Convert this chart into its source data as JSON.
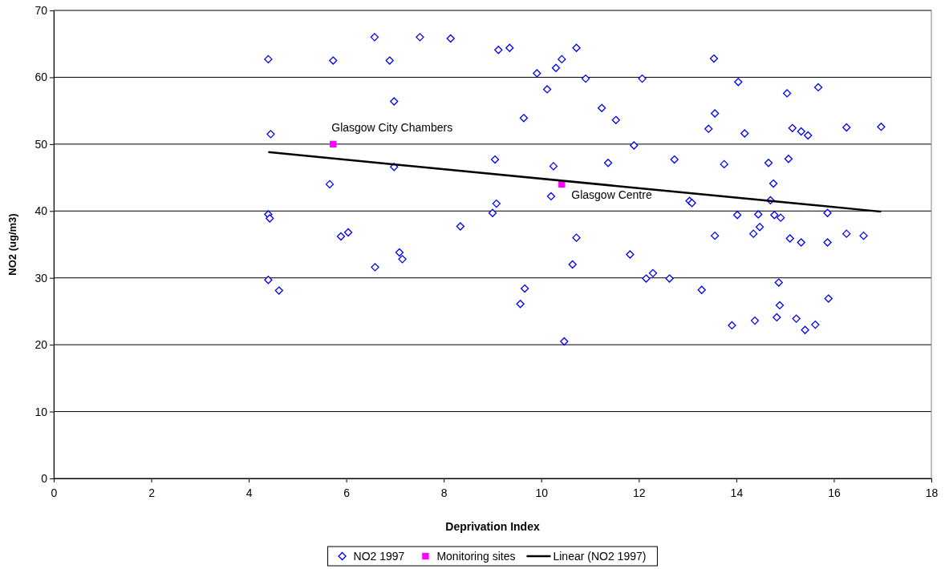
{
  "chart_data": {
    "type": "scatter",
    "xlabel": "Deprivation Index",
    "ylabel": "NO2 (ug/m3)",
    "xlim": [
      0,
      18
    ],
    "xticks": [
      0,
      2,
      4,
      6,
      8,
      10,
      12,
      14,
      16,
      18
    ],
    "ylim": [
      0,
      70
    ],
    "yticks": [
      0,
      10,
      20,
      30,
      40,
      50,
      60,
      70
    ],
    "grid": "y",
    "legend": "bottom",
    "annotations": [
      {
        "text": "Glasgow City Chambers",
        "x": 5.73,
        "y": 50.0
      },
      {
        "text": "Glasgow Centre",
        "x": 10.42,
        "y": 44.0
      }
    ],
    "series": [
      {
        "name": "NO2 1997",
        "marker": "diamond",
        "color": "#0000ff",
        "x": [
          4.4,
          4.45,
          4.4,
          4.43,
          4.4,
          4.62,
          5.73,
          5.66,
          5.89,
          6.04,
          6.58,
          6.59,
          6.89,
          6.98,
          6.98,
          7.09,
          7.15,
          7.51,
          8.14,
          8.34,
          9.0,
          9.05,
          9.08,
          9.12,
          9.35,
          9.57,
          9.64,
          9.66,
          9.91,
          10.12,
          10.2,
          10.25,
          10.3,
          10.42,
          10.47,
          10.64,
          10.72,
          10.72,
          10.91,
          11.24,
          11.37,
          11.53,
          11.82,
          11.9,
          12.07,
          12.15,
          12.29,
          12.63,
          12.73,
          13.29,
          13.43,
          13.04,
          13.09,
          13.54,
          13.56,
          13.56,
          13.75,
          13.91,
          14.02,
          14.04,
          14.17,
          14.35,
          14.38,
          14.45,
          14.48,
          14.66,
          14.7,
          14.76,
          14.78,
          14.83,
          14.87,
          14.89,
          14.91,
          15.04,
          15.07,
          15.1,
          15.15,
          15.23,
          15.33,
          15.33,
          15.41,
          15.47,
          15.62,
          15.68,
          15.87,
          15.87,
          15.89,
          16.26,
          16.26,
          16.61,
          16.97
        ],
        "values": [
          62.7,
          51.5,
          39.5,
          38.9,
          29.7,
          28.1,
          62.5,
          44.0,
          36.2,
          36.8,
          66.0,
          31.6,
          62.5,
          56.4,
          46.6,
          33.8,
          32.8,
          66.0,
          65.8,
          37.7,
          39.7,
          47.7,
          41.1,
          64.1,
          64.4,
          26.1,
          53.9,
          28.4,
          60.6,
          58.2,
          42.2,
          46.7,
          61.4,
          62.7,
          20.5,
          32.0,
          36.0,
          64.4,
          59.8,
          55.4,
          47.2,
          53.6,
          33.5,
          49.8,
          59.8,
          29.9,
          30.7,
          29.9,
          47.7,
          28.2,
          52.3,
          41.5,
          41.2,
          62.8,
          54.6,
          36.3,
          47.0,
          22.9,
          39.4,
          59.3,
          51.6,
          36.6,
          23.6,
          39.5,
          37.6,
          47.2,
          41.6,
          44.1,
          39.4,
          24.1,
          29.3,
          25.9,
          39.0,
          57.6,
          47.8,
          35.9,
          52.4,
          23.9,
          51.9,
          35.3,
          22.2,
          51.3,
          23.0,
          58.5,
          39.7,
          35.3,
          26.9,
          52.5,
          36.6,
          36.3,
          52.6
        ]
      },
      {
        "name": "Monitoring sites",
        "marker": "square",
        "color": "#ff00ff",
        "x": [
          5.73,
          10.42
        ],
        "values": [
          50.0,
          44.0
        ]
      },
      {
        "name": "Linear (NO2 1997)",
        "type": "line",
        "marker": "none",
        "color": "#000000",
        "x": [
          4.4,
          16.97
        ],
        "values": [
          48.8,
          39.9
        ]
      }
    ]
  }
}
